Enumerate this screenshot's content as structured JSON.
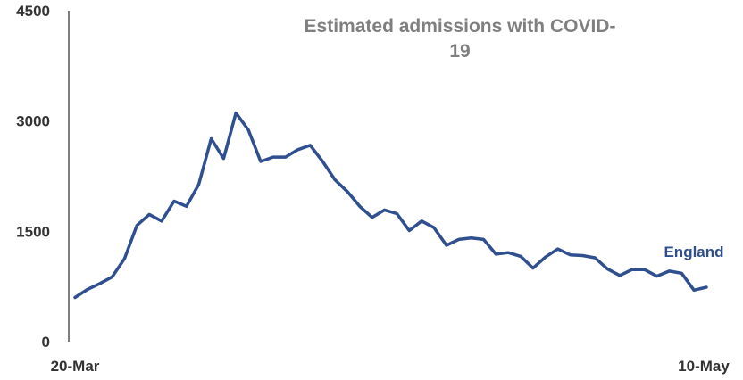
{
  "chart_data": {
    "type": "line",
    "title_lines": [
      "Estimated admissions with COVID-",
      "19"
    ],
    "xlabel": "",
    "ylabel": "",
    "x_tick_labels": [
      "20-Mar",
      "10-May"
    ],
    "y_ticks": [
      0,
      1500,
      3000,
      4500
    ],
    "y_tick_labels": [
      "0",
      "1500",
      "3000",
      "4500"
    ],
    "ylim": [
      0,
      4500
    ],
    "grid": false,
    "line_color": "#2f4f8f",
    "series": [
      {
        "name": "England",
        "x": [
          "20-Mar",
          "21-Mar",
          "22-Mar",
          "23-Mar",
          "24-Mar",
          "25-Mar",
          "26-Mar",
          "27-Mar",
          "28-Mar",
          "29-Mar",
          "30-Mar",
          "31-Mar",
          "1-Apr",
          "2-Apr",
          "3-Apr",
          "4-Apr",
          "5-Apr",
          "6-Apr",
          "7-Apr",
          "8-Apr",
          "9-Apr",
          "10-Apr",
          "11-Apr",
          "12-Apr",
          "13-Apr",
          "14-Apr",
          "15-Apr",
          "16-Apr",
          "17-Apr",
          "18-Apr",
          "19-Apr",
          "20-Apr",
          "21-Apr",
          "22-Apr",
          "23-Apr",
          "24-Apr",
          "25-Apr",
          "26-Apr",
          "27-Apr",
          "28-Apr",
          "29-Apr",
          "30-Apr",
          "1-May",
          "2-May",
          "3-May",
          "4-May",
          "5-May",
          "6-May",
          "7-May",
          "8-May",
          "9-May",
          "10-May"
        ],
        "values": [
          600,
          710,
          790,
          880,
          1130,
          1580,
          1730,
          1640,
          1910,
          1840,
          2140,
          2760,
          2490,
          3110,
          2880,
          2450,
          2510,
          2510,
          2610,
          2670,
          2450,
          2200,
          2040,
          1840,
          1690,
          1790,
          1740,
          1510,
          1640,
          1550,
          1310,
          1390,
          1410,
          1390,
          1190,
          1210,
          1160,
          1000,
          1150,
          1260,
          1180,
          1170,
          1140,
          990,
          900,
          980,
          980,
          890,
          960,
          930,
          700,
          740
        ]
      }
    ]
  }
}
